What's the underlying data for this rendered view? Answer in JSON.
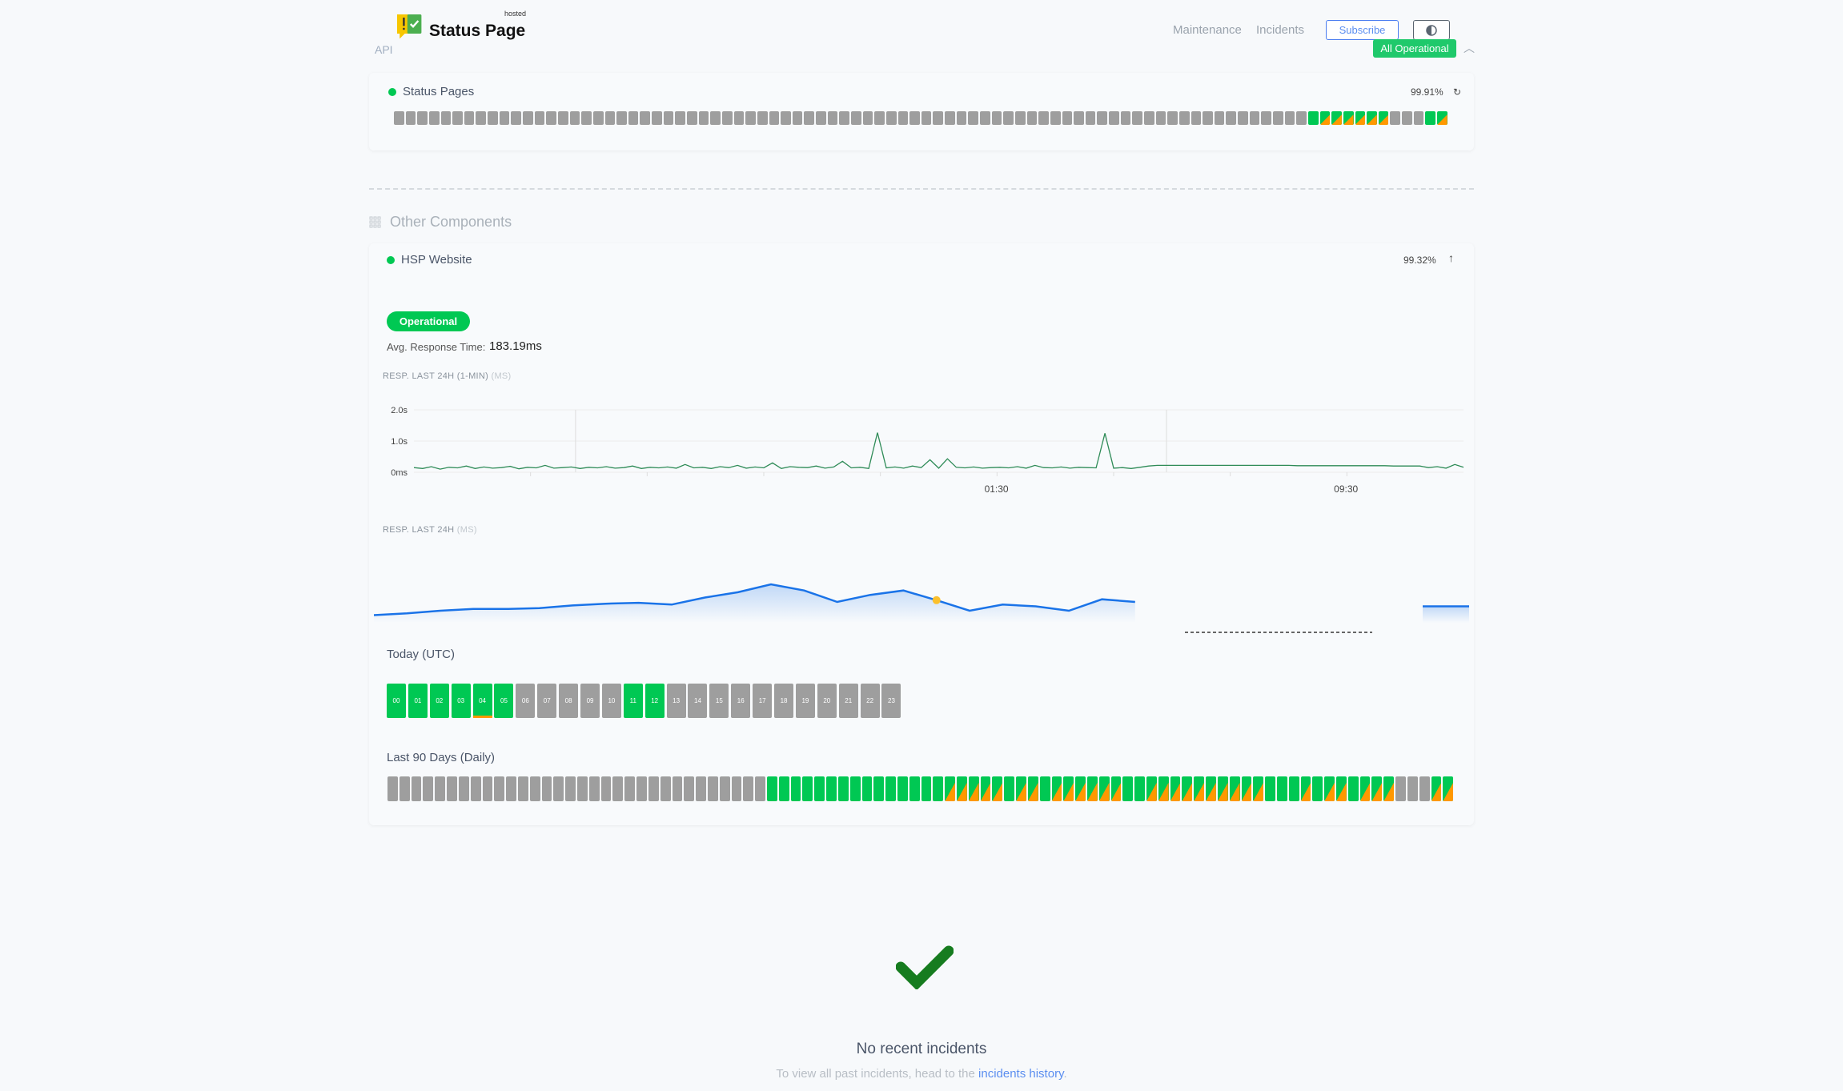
{
  "header": {
    "logo_text": "Status Page",
    "logo_hosted": "hosted",
    "api_label": "API",
    "nav": {
      "maintenance": "Maintenance",
      "incidents": "Incidents"
    },
    "subscribe_label": "Subscribe",
    "theme_icon": "half-circle-contrast-icon",
    "overall_status": "All Operational",
    "collapse_icon": "chevron-up-icon"
  },
  "colors": {
    "operational": "#00c853",
    "degraded": "#ff9800",
    "no_data": "#9e9e9e",
    "accent": "#4a7df0",
    "line": "#2e8b57",
    "area": "#1a73e8"
  },
  "api_group": {
    "component": {
      "name": "Status Pages",
      "uptime": "99.91%",
      "icon": "refresh-icon",
      "days": "ggggggggggggggggggggggggggggggggggggggggggggggggggggggggggggggggggggggggggggggGMMMMMMgggGM"
    }
  },
  "other": {
    "title": "Other Components",
    "icon": "grid-icon",
    "component": {
      "name": "HSP Website",
      "uptime": "99.32%",
      "icon": "arrow-up-icon",
      "status": "Operational",
      "avg_label": "Avg. Response Time:",
      "avg_value": "183.19ms",
      "chart1_label": "RESP. LAST 24H (1-MIN)",
      "chart1_unit": "(MS)",
      "chart2_label": "RESP. LAST 24H",
      "chart2_unit": "(MS)",
      "today_label": "Today (UTC)",
      "hours": [
        {
          "h": "00",
          "s": "G"
        },
        {
          "h": "01",
          "s": "G"
        },
        {
          "h": "02",
          "s": "G"
        },
        {
          "h": "03",
          "s": "G"
        },
        {
          "h": "04",
          "s": "G",
          "warn": true
        },
        {
          "h": "05",
          "s": "G"
        },
        {
          "h": "06",
          "s": "g"
        },
        {
          "h": "07",
          "s": "g"
        },
        {
          "h": "08",
          "s": "g"
        },
        {
          "h": "09",
          "s": "g"
        },
        {
          "h": "10",
          "s": "g"
        },
        {
          "h": "11",
          "s": "G"
        },
        {
          "h": "12",
          "s": "G"
        },
        {
          "h": "13",
          "s": "g"
        },
        {
          "h": "14",
          "s": "g"
        },
        {
          "h": "15",
          "s": "g"
        },
        {
          "h": "16",
          "s": "g"
        },
        {
          "h": "17",
          "s": "g"
        },
        {
          "h": "18",
          "s": "g"
        },
        {
          "h": "19",
          "s": "g"
        },
        {
          "h": "20",
          "s": "g"
        },
        {
          "h": "21",
          "s": "g"
        },
        {
          "h": "22",
          "s": "g"
        },
        {
          "h": "23",
          "s": "g"
        }
      ],
      "days_label": "Last 90 Days (Daily)",
      "days": "ggggggggggggggggggggggggggggggggGGGGGGGGGGGGGGGMMMMMGMMGMMMMMMGGMMMMMMMMMMGGGMGMMGMMMgggMM"
    }
  },
  "chart_data": [
    {
      "type": "line",
      "title": "RESP. LAST 24H (1-MIN) (MS)",
      "yticks": [
        "0ms",
        "1.0s",
        "2.0s"
      ],
      "ylim": [
        0,
        2.0
      ],
      "xticks": [
        {
          "label": "01:30",
          "at": 0.555
        },
        {
          "label": "09:30",
          "at": 0.888
        }
      ],
      "values": [
        0.15,
        0.12,
        0.18,
        0.1,
        0.16,
        0.14,
        0.2,
        0.12,
        0.17,
        0.13,
        0.15,
        0.19,
        0.11,
        0.16,
        0.14,
        0.22,
        0.13,
        0.15,
        0.17,
        0.12,
        0.16,
        0.14,
        0.18,
        0.13,
        0.15,
        0.2,
        0.12,
        0.16,
        0.14,
        0.17,
        0.13,
        0.25,
        0.14,
        0.16,
        0.12,
        0.18,
        0.15,
        0.22,
        0.13,
        0.17,
        0.14,
        0.3,
        0.12,
        0.18,
        0.16,
        0.15,
        0.2,
        0.13,
        0.17,
        0.35,
        0.14,
        0.16,
        0.12,
        1.27,
        0.14,
        0.17,
        0.13,
        0.2,
        0.15,
        0.4,
        0.13,
        0.43,
        0.16,
        0.14,
        0.17,
        0.13,
        0.15,
        0.16,
        0.14,
        0.18,
        0.13,
        0.22,
        0.15,
        0.14,
        0.17,
        0.13,
        0.16,
        0.15,
        0.14,
        1.25,
        0.13,
        0.15,
        0.12,
        0.16,
        0.2,
        0.22,
        0.22,
        0.22,
        0.22,
        0.22,
        0.22,
        0.22,
        0.22,
        0.22,
        0.22,
        0.22,
        0.22,
        0.22,
        0.22,
        0.22,
        0.22,
        0.21,
        0.21,
        0.21,
        0.21,
        0.21,
        0.21,
        0.21,
        0.21,
        0.21,
        0.21,
        0.21,
        0.2,
        0.2,
        0.2,
        0.2,
        0.15,
        0.18,
        0.13,
        0.25,
        0.16
      ]
    },
    {
      "type": "area",
      "title": "RESP. LAST 24H (MS)",
      "values": [
        170,
        172,
        175,
        177,
        177,
        178,
        181,
        183,
        184,
        182,
        190,
        196,
        205,
        198,
        185,
        193,
        198,
        187,
        175,
        182,
        180,
        175,
        188,
        185,
        null,
        null,
        null,
        null,
        null,
        null,
        null,
        null,
        null,
        180,
        180
      ],
      "highlight_index": 17
    }
  ],
  "incidents": {
    "icon": "checkmark-icon",
    "title": "No recent incidents",
    "sub_prefix": "To view all past incidents, head to the",
    "link": "incidents history",
    "sub_suffix": "."
  }
}
